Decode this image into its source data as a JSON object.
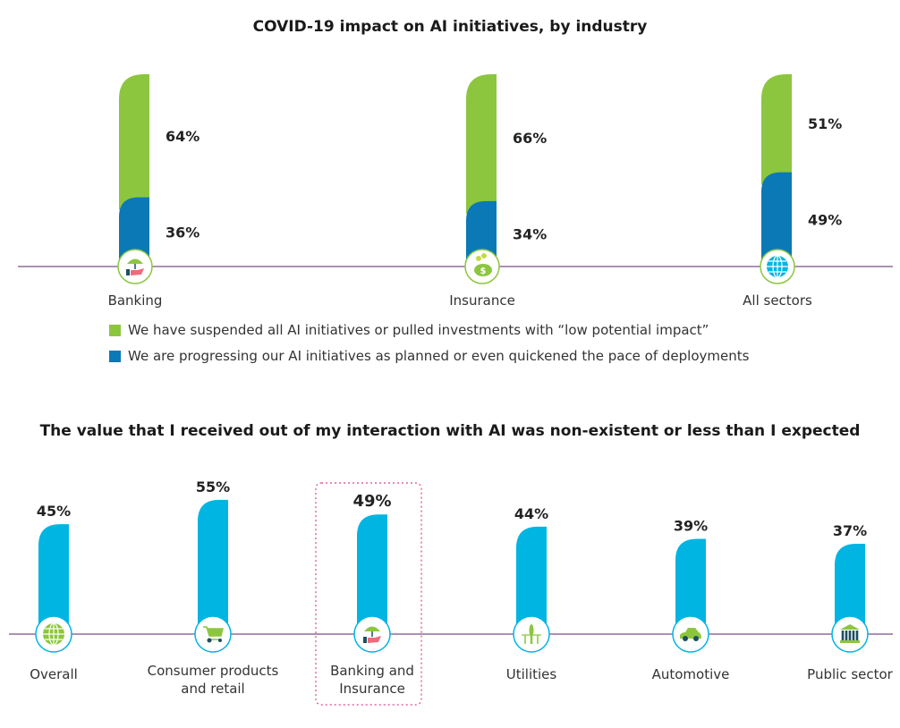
{
  "chart_data": [
    {
      "type": "bar",
      "stacked": true,
      "title": "COVID-19 impact on AI initiatives, by industry",
      "categories": [
        "Banking",
        "Insurance",
        "All sectors"
      ],
      "category_icons": [
        "umbrella-hand-icon",
        "piggy-bank-icon",
        "globe-icon"
      ],
      "series": [
        {
          "name": "We are progressing our AI initiatives as planned or even quickened the pace of deployments",
          "color": "#0b79b6",
          "values": [
            36,
            34,
            49
          ]
        },
        {
          "name": "We have suspended all AI initiatives or pulled investments with “low potential impact”",
          "color": "#8cc63f",
          "values": [
            64,
            66,
            51
          ]
        }
      ],
      "data_labels_suffix": "%",
      "ylim": [
        0,
        100
      ],
      "legend": [
        {
          "label": "We have suspended all AI initiatives or pulled investments with “low potential impact”",
          "color": "#8cc63f"
        },
        {
          "label": "We are progressing our AI initiatives as planned or even quickened the pace of deployments",
          "color": "#0b79b6"
        }
      ],
      "legend_position": "bottom-left",
      "axis_color": "#7a4f8c"
    },
    {
      "type": "bar",
      "title": "The value that I received out of my interaction with AI was non-existent or less than I expected",
      "categories": [
        "Overall",
        "Consumer products and retail",
        "Banking and Insurance",
        "Utilities",
        "Automotive",
        "Public sector"
      ],
      "category_label_lines": [
        [
          "Overall"
        ],
        [
          "Consumer products",
          "and retail"
        ],
        [
          "Banking and",
          "Insurance"
        ],
        [
          "Utilities"
        ],
        [
          "Automotive"
        ],
        [
          "Public sector"
        ]
      ],
      "category_icons": [
        "globe-icon",
        "shopping-cart-icon",
        "umbrella-hand-icon",
        "wind-turbine-icon",
        "car-icon",
        "government-building-icon"
      ],
      "values": [
        45,
        55,
        49,
        44,
        39,
        37
      ],
      "color": "#00b5e2",
      "highlighted_category": "Banking and Insurance",
      "highlight_color": "#d9448a",
      "data_labels_suffix": "%",
      "ylim": [
        0,
        100
      ],
      "axis_color": "#7a4f8c"
    }
  ]
}
